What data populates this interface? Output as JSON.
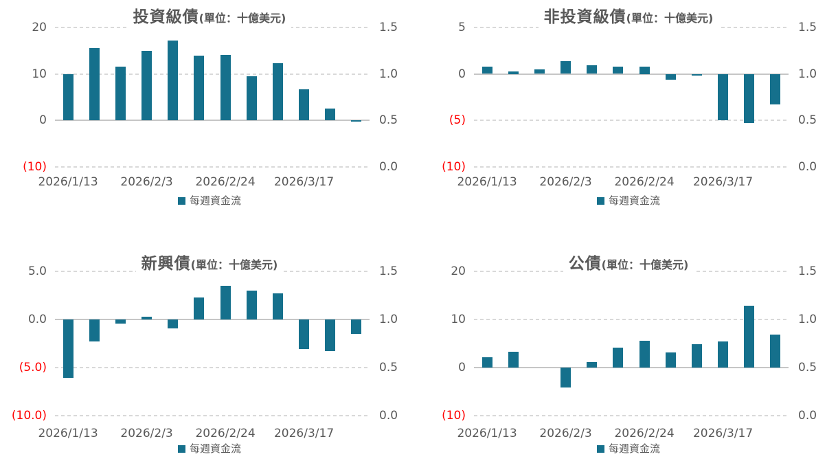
{
  "page": {
    "background": "#ffffff"
  },
  "colors": {
    "bar": "#15708c",
    "text_gray": "#595959",
    "tick_red": "#ff0000",
    "grid_dashed": "#d9d9d9",
    "axis_solid": "#c6c6c6"
  },
  "chart_data": [
    {
      "type": "bar",
      "title": "投資級債",
      "unit_suffix": "(單位：十億美元)",
      "legend": "每週資金流",
      "num_bars": 12,
      "values": [
        10.0,
        15.5,
        11.6,
        15.0,
        17.2,
        14.0,
        14.1,
        9.5,
        12.3,
        6.7,
        2.5,
        -0.3
      ],
      "left_axis": {
        "min": -10,
        "max": 20,
        "ticks": [
          {
            "label": "20",
            "value": 20,
            "negative": false
          },
          {
            "label": "10",
            "value": 10,
            "negative": false
          },
          {
            "label": "0",
            "value": 0,
            "negative": false
          },
          {
            "label": "(10)",
            "value": -10,
            "negative": true
          }
        ]
      },
      "right_axis": {
        "min": 0.0,
        "max": 1.5,
        "ticks": [
          "1.5",
          "1.0",
          "0.5",
          "0.0"
        ]
      },
      "x_ticks": [
        {
          "label": "2026/1/13",
          "bar_index": 0
        },
        {
          "label": "2026/2/3",
          "bar_index": 3
        },
        {
          "label": "2026/2/24",
          "bar_index": 6
        },
        {
          "label": "2026/3/17",
          "bar_index": 9
        }
      ],
      "grid": true,
      "legend_position": "bottom"
    },
    {
      "type": "bar",
      "title": "非投資級債",
      "unit_suffix": "(單位：十億美元)",
      "legend": "每週資金流",
      "num_bars": 12,
      "values": [
        0.8,
        0.25,
        0.45,
        1.4,
        0.9,
        0.8,
        0.75,
        -0.65,
        -0.2,
        -5.0,
        -5.3,
        -3.3
      ],
      "left_axis": {
        "min": -10,
        "max": 5,
        "ticks": [
          {
            "label": "5",
            "value": 5,
            "negative": false
          },
          {
            "label": "0",
            "value": 0,
            "negative": false
          },
          {
            "label": "(5)",
            "value": -5,
            "negative": true
          },
          {
            "label": "(10)",
            "value": -10,
            "negative": true
          }
        ]
      },
      "right_axis": {
        "min": 0.0,
        "max": 1.5,
        "ticks": [
          "1.5",
          "1.0",
          "0.5",
          "0.0"
        ]
      },
      "x_ticks": [
        {
          "label": "2026/1/13",
          "bar_index": 0
        },
        {
          "label": "2026/2/3",
          "bar_index": 3
        },
        {
          "label": "2026/2/24",
          "bar_index": 6
        },
        {
          "label": "2026/3/17",
          "bar_index": 9
        }
      ],
      "grid": true,
      "legend_position": "bottom"
    },
    {
      "type": "bar",
      "title": "新興債",
      "unit_suffix": "(單位：十億美元)",
      "legend": "每週資金流",
      "num_bars": 12,
      "values": [
        -6.1,
        -2.3,
        -0.4,
        0.3,
        -0.9,
        2.3,
        3.5,
        3.0,
        2.7,
        -3.1,
        -3.3,
        -1.5
      ],
      "left_axis": {
        "min": -10,
        "max": 5,
        "ticks": [
          {
            "label": "5.0",
            "value": 5,
            "negative": false
          },
          {
            "label": "0.0",
            "value": 0,
            "negative": false
          },
          {
            "label": "(5.0)",
            "value": -5,
            "negative": true
          },
          {
            "label": "(10.0)",
            "value": -10,
            "negative": true
          }
        ]
      },
      "right_axis": {
        "min": 0.0,
        "max": 1.5,
        "ticks": [
          "1.5",
          "1.0",
          "0.5",
          "0.0"
        ]
      },
      "x_ticks": [
        {
          "label": "2026/1/13",
          "bar_index": 0
        },
        {
          "label": "2026/2/3",
          "bar_index": 3
        },
        {
          "label": "2026/2/24",
          "bar_index": 6
        },
        {
          "label": "2026/3/17",
          "bar_index": 9
        }
      ],
      "grid": true,
      "legend_position": "bottom"
    },
    {
      "type": "bar",
      "title": "公債",
      "unit_suffix": "(單位：十億美元)",
      "legend": "每週資金流",
      "num_bars": 12,
      "values": [
        2.1,
        3.3,
        0,
        -4.1,
        1.2,
        4.1,
        5.6,
        3.1,
        4.8,
        5.4,
        12.8,
        6.8
      ],
      "left_axis": {
        "min": -10,
        "max": 20,
        "ticks": [
          {
            "label": "20",
            "value": 20,
            "negative": false
          },
          {
            "label": "10",
            "value": 10,
            "negative": false
          },
          {
            "label": "0",
            "value": 0,
            "negative": false
          },
          {
            "label": "(10)",
            "value": -10,
            "negative": true
          }
        ]
      },
      "right_axis": {
        "min": 0.0,
        "max": 1.5,
        "ticks": [
          "1.5",
          "1.0",
          "0.5",
          "0.0"
        ]
      },
      "x_ticks": [
        {
          "label": "2026/1/13",
          "bar_index": 0
        },
        {
          "label": "2026/2/3",
          "bar_index": 3
        },
        {
          "label": "2026/2/24",
          "bar_index": 6
        },
        {
          "label": "2026/3/17",
          "bar_index": 9
        }
      ],
      "grid": true,
      "legend_position": "bottom"
    }
  ]
}
